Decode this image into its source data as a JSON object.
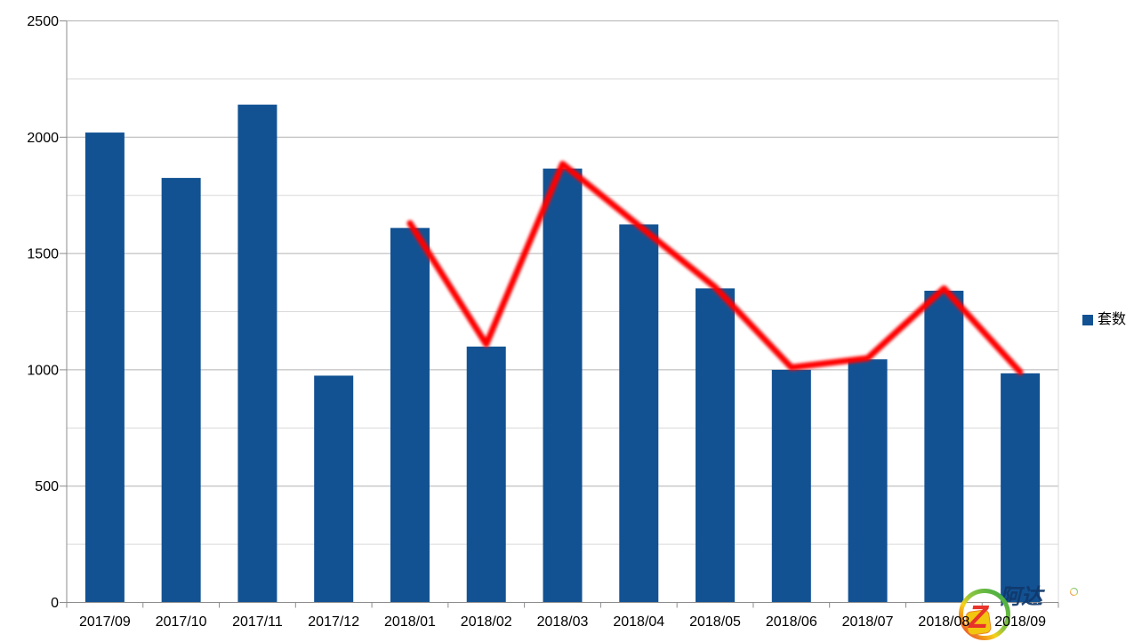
{
  "chart_data": {
    "type": "bar",
    "title": "",
    "xlabel": "",
    "ylabel": "",
    "categories": [
      "2017/09",
      "2017/10",
      "2017/11",
      "2017/12",
      "2018/01",
      "2018/02",
      "2018/03",
      "2018/04",
      "2018/05",
      "2018/06",
      "2018/07",
      "2018/08",
      "2018/09"
    ],
    "bar_series": {
      "name": "套数",
      "color": "#125293",
      "values": [
        2020,
        1825,
        2140,
        975,
        1610,
        1100,
        1865,
        1625,
        1350,
        1000,
        1045,
        1340,
        985
      ]
    },
    "trend_line": {
      "color": "#ff0000",
      "start_category_index": 4,
      "values": [
        1630,
        1110,
        1885,
        1620,
        1355,
        1010,
        1050,
        1350,
        990
      ]
    },
    "ylim": [
      0,
      2500
    ],
    "y_major_ticks": [
      0,
      500,
      1000,
      1500,
      2000,
      2500
    ],
    "y_tick_labels": [
      "0",
      "500",
      "1000",
      "1500",
      "2000",
      "2500"
    ],
    "y_minor_step": 250,
    "grid": true,
    "legend_position": "right"
  },
  "legend": {
    "label": "套数",
    "swatch_color": "#125293"
  },
  "watermark": {
    "monogram": "Z",
    "text": "阿达",
    "dots": "..."
  },
  "colors": {
    "bar": "#125293",
    "trend": "#ff0000",
    "grid_major": "#b2b2b2",
    "grid_minor": "#d9d9d9",
    "axis": "#8c8c8c",
    "label": "#000000",
    "watermark_text": "#10386b",
    "watermark_yellow": "#f2c50f",
    "watermark_red": "#e8332a",
    "watermark_green": "#35a845"
  }
}
